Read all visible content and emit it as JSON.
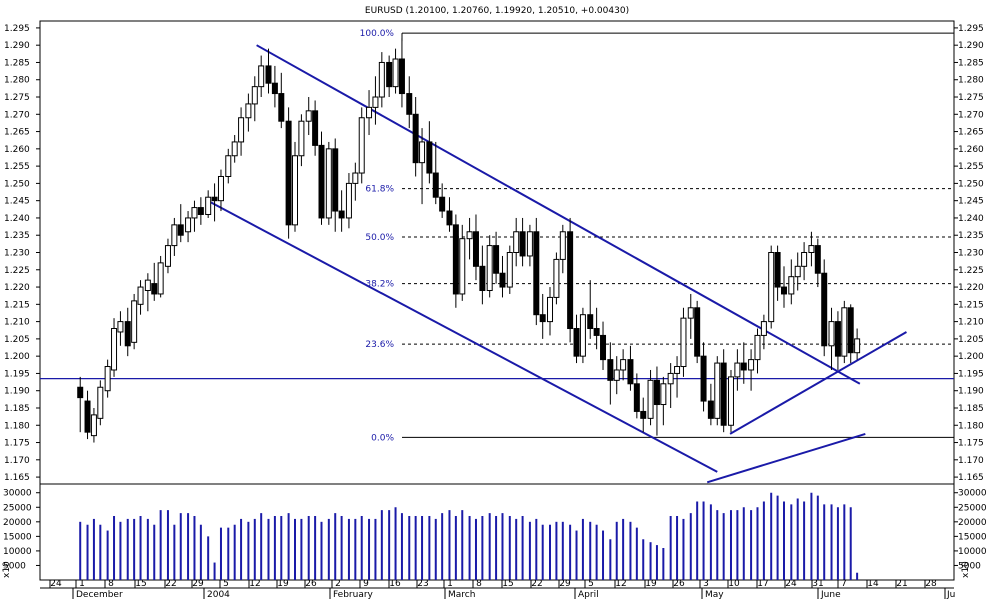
{
  "chart_data": {
    "type": "candlestick",
    "title": "EURUSD (1.20100, 1.20760, 1.19920, 1.20510, +0.00430)",
    "price_axis": {
      "ylim": [
        1.163,
        1.297
      ],
      "ticks": [
        "1.295",
        "1.290",
        "1.285",
        "1.280",
        "1.275",
        "1.270",
        "1.265",
        "1.260",
        "1.255",
        "1.250",
        "1.245",
        "1.240",
        "1.235",
        "1.230",
        "1.225",
        "1.220",
        "1.215",
        "1.210",
        "1.205",
        "1.200",
        "1.195",
        "1.190",
        "1.185",
        "1.180",
        "1.175",
        "1.170",
        "1.165"
      ]
    },
    "volume_axis": {
      "ylim": [
        0,
        33000
      ],
      "ticks": [
        "30000",
        "25000",
        "20000",
        "15000",
        "10000",
        "5000"
      ],
      "scale_label": "x10"
    },
    "date_axis": {
      "day_ticks": [
        "24",
        "1",
        "8",
        "15",
        "22",
        "29",
        "5",
        "12",
        "19",
        "26",
        "2",
        "9",
        "16",
        "23",
        "1",
        "8",
        "15",
        "22",
        "29",
        "5",
        "12",
        "19",
        "26",
        "3",
        "10",
        "17",
        "24",
        "31",
        "7",
        "14",
        "21",
        "28"
      ],
      "month_labels": [
        "December",
        "2004",
        "February",
        "March",
        "April",
        "May",
        "June"
      ],
      "truncated_right": "Ju"
    },
    "fibonacci_levels": [
      {
        "label": "100.0%",
        "value": 1.2935
      },
      {
        "label": "61.8%",
        "value": 1.2485
      },
      {
        "label": "50.0%",
        "value": 1.2345
      },
      {
        "label": "38.2%",
        "value": 1.221
      },
      {
        "label": "23.6%",
        "value": 1.2035
      },
      {
        "label": "0.0%",
        "value": 1.1765
      }
    ],
    "horizontal_support": 1.1935,
    "trendlines": [
      {
        "name": "upper-channel",
        "from": [
          0.237,
          1.29
        ],
        "to": [
          0.897,
          1.192
        ]
      },
      {
        "name": "lower-channel",
        "from": [
          0.187,
          1.2445
        ],
        "to": [
          0.741,
          1.1665
        ]
      },
      {
        "name": "short-uptrend",
        "from": [
          0.755,
          1.1775
        ],
        "to": [
          0.948,
          1.207
        ]
      },
      {
        "name": "long-uptrend",
        "from": [
          0.73,
          1.1635
        ],
        "to": [
          0.903,
          1.1775
        ]
      }
    ],
    "bars": [
      [
        0.044,
        1.191,
        1.194,
        1.178,
        1.188,
        20000
      ],
      [
        0.052,
        1.187,
        1.19,
        1.176,
        1.178,
        19000
      ],
      [
        0.059,
        1.177,
        1.185,
        1.175,
        1.183,
        21000
      ],
      [
        0.066,
        1.182,
        1.193,
        1.18,
        1.191,
        19000
      ],
      [
        0.074,
        1.19,
        1.199,
        1.188,
        1.197,
        17000
      ],
      [
        0.081,
        1.196,
        1.211,
        1.194,
        1.208,
        22000
      ],
      [
        0.088,
        1.207,
        1.213,
        1.203,
        1.21,
        20000
      ],
      [
        0.096,
        1.21,
        1.214,
        1.2,
        1.203,
        21000
      ],
      [
        0.103,
        1.204,
        1.218,
        1.202,
        1.216,
        21000
      ],
      [
        0.11,
        1.215,
        1.222,
        1.212,
        1.22,
        22000
      ],
      [
        0.118,
        1.219,
        1.224,
        1.213,
        1.222,
        21000
      ],
      [
        0.125,
        1.221,
        1.227,
        1.216,
        1.218,
        19000
      ],
      [
        0.132,
        1.218,
        1.229,
        1.217,
        1.227,
        24000
      ],
      [
        0.14,
        1.226,
        1.234,
        1.224,
        1.232,
        24000
      ],
      [
        0.147,
        1.232,
        1.24,
        1.229,
        1.238,
        19000
      ],
      [
        0.154,
        1.238,
        1.244,
        1.233,
        1.235,
        23000
      ],
      [
        0.162,
        1.236,
        1.242,
        1.233,
        1.24,
        23000
      ],
      [
        0.169,
        1.24,
        1.245,
        1.236,
        1.243,
        22000
      ],
      [
        0.176,
        1.243,
        1.246,
        1.238,
        1.241,
        19000
      ],
      [
        0.184,
        1.241,
        1.248,
        1.24,
        1.246,
        15000
      ],
      [
        0.191,
        1.246,
        1.25,
        1.239,
        1.245,
        6000
      ],
      [
        0.198,
        1.245,
        1.254,
        1.242,
        1.252,
        18000
      ],
      [
        0.206,
        1.252,
        1.26,
        1.25,
        1.258,
        18000
      ],
      [
        0.213,
        1.258,
        1.264,
        1.256,
        1.262,
        19000
      ],
      [
        0.22,
        1.262,
        1.272,
        1.258,
        1.269,
        21000
      ],
      [
        0.228,
        1.269,
        1.276,
        1.265,
        1.273,
        20000
      ],
      [
        0.235,
        1.273,
        1.281,
        1.268,
        1.278,
        21000
      ],
      [
        0.242,
        1.278,
        1.287,
        1.275,
        1.284,
        23000
      ],
      [
        0.25,
        1.284,
        1.289,
        1.276,
        1.279,
        21000
      ],
      [
        0.257,
        1.279,
        1.284,
        1.272,
        1.276,
        22000
      ],
      [
        0.264,
        1.276,
        1.282,
        1.266,
        1.268,
        22000
      ],
      [
        0.272,
        1.268,
        1.272,
        1.234,
        1.238,
        23000
      ],
      [
        0.279,
        1.238,
        1.262,
        1.236,
        1.258,
        21000
      ],
      [
        0.286,
        1.258,
        1.27,
        1.255,
        1.268,
        21000
      ],
      [
        0.294,
        1.268,
        1.275,
        1.264,
        1.271,
        22000
      ],
      [
        0.301,
        1.271,
        1.274,
        1.258,
        1.261,
        22000
      ],
      [
        0.308,
        1.261,
        1.265,
        1.238,
        1.24,
        20000
      ],
      [
        0.316,
        1.24,
        1.262,
        1.238,
        1.26,
        21000
      ],
      [
        0.323,
        1.26,
        1.263,
        1.236,
        1.242,
        23000
      ],
      [
        0.33,
        1.242,
        1.248,
        1.236,
        1.24,
        22000
      ],
      [
        0.338,
        1.24,
        1.253,
        1.237,
        1.25,
        21000
      ],
      [
        0.345,
        1.25,
        1.256,
        1.245,
        1.253,
        21000
      ],
      [
        0.352,
        1.253,
        1.272,
        1.25,
        1.269,
        22000
      ],
      [
        0.36,
        1.269,
        1.277,
        1.264,
        1.272,
        21000
      ],
      [
        0.367,
        1.272,
        1.281,
        1.267,
        1.275,
        21000
      ],
      [
        0.374,
        1.275,
        1.288,
        1.272,
        1.285,
        24000
      ],
      [
        0.382,
        1.285,
        1.287,
        1.275,
        1.278,
        24000
      ],
      [
        0.389,
        1.278,
        1.289,
        1.276,
        1.286,
        25000
      ],
      [
        0.396,
        1.286,
        1.292,
        1.272,
        1.276,
        23000
      ],
      [
        0.404,
        1.276,
        1.281,
        1.266,
        1.27,
        22000
      ],
      [
        0.411,
        1.27,
        1.275,
        1.252,
        1.256,
        22000
      ],
      [
        0.418,
        1.256,
        1.266,
        1.244,
        1.262,
        22000
      ],
      [
        0.426,
        1.262,
        1.268,
        1.25,
        1.253,
        22000
      ],
      [
        0.433,
        1.253,
        1.262,
        1.244,
        1.246,
        21000
      ],
      [
        0.44,
        1.246,
        1.25,
        1.24,
        1.242,
        23000
      ],
      [
        0.448,
        1.242,
        1.246,
        1.236,
        1.238,
        24000
      ],
      [
        0.455,
        1.238,
        1.241,
        1.214,
        1.218,
        22000
      ],
      [
        0.462,
        1.218,
        1.238,
        1.216,
        1.234,
        24000
      ],
      [
        0.47,
        1.234,
        1.24,
        1.228,
        1.236,
        22000
      ],
      [
        0.477,
        1.236,
        1.241,
        1.222,
        1.226,
        21000
      ],
      [
        0.484,
        1.226,
        1.232,
        1.215,
        1.219,
        22000
      ],
      [
        0.492,
        1.219,
        1.235,
        1.217,
        1.232,
        23000
      ],
      [
        0.499,
        1.232,
        1.236,
        1.221,
        1.224,
        22000
      ],
      [
        0.506,
        1.224,
        1.229,
        1.217,
        1.22,
        23000
      ],
      [
        0.514,
        1.22,
        1.232,
        1.218,
        1.23,
        22000
      ],
      [
        0.521,
        1.23,
        1.24,
        1.226,
        1.236,
        21000
      ],
      [
        0.528,
        1.236,
        1.24,
        1.226,
        1.229,
        22000
      ],
      [
        0.536,
        1.229,
        1.238,
        1.226,
        1.236,
        20000
      ],
      [
        0.543,
        1.236,
        1.24,
        1.209,
        1.212,
        21000
      ],
      [
        0.55,
        1.212,
        1.218,
        1.205,
        1.21,
        19000
      ],
      [
        0.558,
        1.21,
        1.22,
        1.206,
        1.217,
        19000
      ],
      [
        0.565,
        1.217,
        1.23,
        1.215,
        1.228,
        20000
      ],
      [
        0.572,
        1.228,
        1.238,
        1.224,
        1.236,
        20000
      ],
      [
        0.58,
        1.236,
        1.24,
        1.204,
        1.208,
        19000
      ],
      [
        0.587,
        1.208,
        1.212,
        1.198,
        1.2,
        17000
      ],
      [
        0.594,
        1.2,
        1.214,
        1.198,
        1.212,
        21000
      ],
      [
        0.602,
        1.212,
        1.222,
        1.205,
        1.208,
        20000
      ],
      [
        0.609,
        1.208,
        1.214,
        1.202,
        1.206,
        19000
      ],
      [
        0.616,
        1.206,
        1.21,
        1.196,
        1.199,
        17000
      ],
      [
        0.624,
        1.199,
        1.204,
        1.186,
        1.193,
        14000
      ],
      [
        0.631,
        1.193,
        1.2,
        1.189,
        1.196,
        20000
      ],
      [
        0.638,
        1.196,
        1.202,
        1.193,
        1.199,
        21000
      ],
      [
        0.646,
        1.199,
        1.203,
        1.19,
        1.192,
        20000
      ],
      [
        0.653,
        1.192,
        1.195,
        1.182,
        1.184,
        18000
      ],
      [
        0.66,
        1.184,
        1.188,
        1.178,
        1.182,
        14000
      ],
      [
        0.668,
        1.182,
        1.196,
        1.18,
        1.193,
        13000
      ],
      [
        0.675,
        1.193,
        1.197,
        1.177,
        1.186,
        12000
      ],
      [
        0.682,
        1.186,
        1.194,
        1.18,
        1.192,
        11000
      ],
      [
        0.69,
        1.192,
        1.198,
        1.185,
        1.195,
        22000
      ],
      [
        0.697,
        1.195,
        1.2,
        1.188,
        1.197,
        22000
      ],
      [
        0.704,
        1.197,
        1.214,
        1.194,
        1.211,
        21000
      ],
      [
        0.712,
        1.211,
        1.218,
        1.205,
        1.214,
        23000
      ],
      [
        0.719,
        1.214,
        1.216,
        1.198,
        1.2,
        27000
      ],
      [
        0.726,
        1.2,
        1.204,
        1.184,
        1.187,
        27000
      ],
      [
        0.734,
        1.187,
        1.192,
        1.18,
        1.182,
        26000
      ],
      [
        0.741,
        1.182,
        1.2,
        1.18,
        1.198,
        24000
      ],
      [
        0.748,
        1.198,
        1.202,
        1.178,
        1.18,
        23000
      ],
      [
        0.756,
        1.18,
        1.196,
        1.178,
        1.194,
        24000
      ],
      [
        0.763,
        1.194,
        1.202,
        1.19,
        1.198,
        24000
      ],
      [
        0.77,
        1.198,
        1.204,
        1.192,
        1.196,
        25000
      ],
      [
        0.778,
        1.196,
        1.202,
        1.19,
        1.199,
        24000
      ],
      [
        0.785,
        1.199,
        1.208,
        1.195,
        1.206,
        25000
      ],
      [
        0.792,
        1.206,
        1.212,
        1.202,
        1.21,
        27000
      ],
      [
        0.8,
        1.21,
        1.232,
        1.208,
        1.23,
        30000
      ],
      [
        0.807,
        1.23,
        1.232,
        1.216,
        1.22,
        29000
      ],
      [
        0.814,
        1.22,
        1.226,
        1.214,
        1.218,
        27000
      ],
      [
        0.822,
        1.218,
        1.228,
        1.215,
        1.223,
        26000
      ],
      [
        0.829,
        1.223,
        1.23,
        1.219,
        1.226,
        28000
      ],
      [
        0.836,
        1.226,
        1.233,
        1.222,
        1.23,
        27000
      ],
      [
        0.844,
        1.23,
        1.236,
        1.226,
        1.232,
        30000
      ],
      [
        0.851,
        1.232,
        1.234,
        1.22,
        1.224,
        29000
      ],
      [
        0.858,
        1.224,
        1.228,
        1.2,
        1.203,
        26000
      ],
      [
        0.866,
        1.203,
        1.214,
        1.196,
        1.21,
        26000
      ],
      [
        0.873,
        1.21,
        1.213,
        1.196,
        1.2,
        25000
      ],
      [
        0.88,
        1.2,
        1.216,
        1.198,
        1.214,
        26000
      ],
      [
        0.887,
        1.214,
        1.215,
        1.198,
        1.201,
        25000
      ],
      [
        0.894,
        1.201,
        1.208,
        1.199,
        1.205,
        2500
      ]
    ]
  }
}
